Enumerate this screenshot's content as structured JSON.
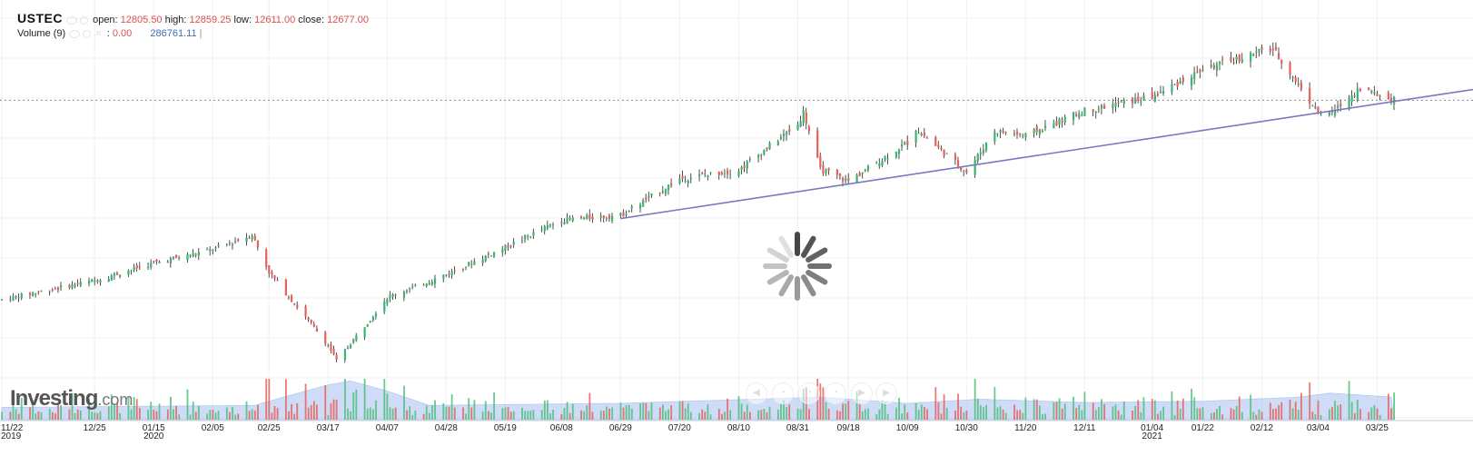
{
  "legend": {
    "symbol": "USTEC",
    "open_label": "open:",
    "open": "12805.50",
    "high_label": "high:",
    "high": "12859.25",
    "low_label": "low:",
    "low": "12611.00",
    "close_label": "close:",
    "close": "12677.00",
    "volume_label": "Volume (9)",
    "volume_sep": ":",
    "volume_value": "0.00",
    "volume_ma": "286761.11"
  },
  "watermark": {
    "brand": "Investing",
    "suffix": ".com"
  },
  "colors": {
    "up": "#3cb371",
    "down": "#e8605b",
    "wick": "#222222",
    "trendline": "#7b77c0",
    "volume_area": "#a9c1f3",
    "grid": "#f0f0f0",
    "dotted_line": "#888888"
  },
  "chart_data": {
    "type": "candlestick",
    "title": "",
    "instrument": "USTEC",
    "x_tick_labels": [
      "11/22",
      "12/25",
      "01/15",
      "02/05",
      "02/25",
      "03/17",
      "04/07",
      "04/28",
      "05/19",
      "06/08",
      "06/29",
      "07/20",
      "08/10",
      "08/31",
      "09/18",
      "10/09",
      "10/30",
      "11/20",
      "12/11",
      "01/04",
      "01/22",
      "02/12",
      "03/04",
      "03/25"
    ],
    "year_labels": [
      {
        "label": "2019",
        "tick": "11/22"
      },
      {
        "label": "2020",
        "tick": "01/15"
      },
      {
        "label": "2021",
        "tick": "01/04"
      }
    ],
    "close_path": [
      {
        "d": "2019-11-22",
        "v": 8300
      },
      {
        "d": "2019-12-25",
        "v": 8720
      },
      {
        "d": "2020-01-15",
        "v": 9100
      },
      {
        "d": "2020-02-05",
        "v": 9400
      },
      {
        "d": "2020-02-19",
        "v": 9720
      },
      {
        "d": "2020-02-25",
        "v": 8900
      },
      {
        "d": "2020-03-17",
        "v": 7300
      },
      {
        "d": "2020-03-20",
        "v": 6950
      },
      {
        "d": "2020-04-07",
        "v": 8350
      },
      {
        "d": "2020-04-28",
        "v": 8850
      },
      {
        "d": "2020-05-19",
        "v": 9450
      },
      {
        "d": "2020-06-08",
        "v": 10050
      },
      {
        "d": "2020-06-29",
        "v": 10150
      },
      {
        "d": "2020-07-20",
        "v": 10950
      },
      {
        "d": "2020-08-10",
        "v": 11150
      },
      {
        "d": "2020-08-31",
        "v": 12150
      },
      {
        "d": "2020-09-02",
        "v": 12420
      },
      {
        "d": "2020-09-08",
        "v": 11150
      },
      {
        "d": "2020-09-18",
        "v": 10900
      },
      {
        "d": "2020-10-09",
        "v": 11750
      },
      {
        "d": "2020-10-12",
        "v": 12050
      },
      {
        "d": "2020-10-30",
        "v": 11100
      },
      {
        "d": "2020-11-09",
        "v": 12000
      },
      {
        "d": "2020-11-20",
        "v": 11900
      },
      {
        "d": "2020-12-11",
        "v": 12450
      },
      {
        "d": "2021-01-04",
        "v": 12750
      },
      {
        "d": "2021-01-22",
        "v": 13350
      },
      {
        "d": "2021-02-12",
        "v": 13750
      },
      {
        "d": "2021-02-16",
        "v": 13800
      },
      {
        "d": "2021-03-04",
        "v": 12400
      },
      {
        "d": "2021-03-08",
        "v": 12350
      },
      {
        "d": "2021-03-19",
        "v": 12950
      },
      {
        "d": "2021-03-25",
        "v": 12800
      },
      {
        "d": "2021-03-31",
        "v": 12677
      }
    ],
    "horizontal_level": 12677,
    "trendline": [
      {
        "d": "2020-06-29",
        "v": 10080
      },
      {
        "d": "2021-03-31",
        "v": 12650
      }
    ],
    "ylim": [
      6900,
      14000
    ],
    "volume_ma_profile": [
      {
        "d": "2019-11-22",
        "v": 0.3
      },
      {
        "d": "2020-02-20",
        "v": 0.35
      },
      {
        "d": "2020-03-01",
        "v": 0.55
      },
      {
        "d": "2020-03-17",
        "v": 0.85
      },
      {
        "d": "2020-03-25",
        "v": 0.95
      },
      {
        "d": "2020-04-07",
        "v": 0.7
      },
      {
        "d": "2020-04-22",
        "v": 0.35
      },
      {
        "d": "2020-06-29",
        "v": 0.4
      },
      {
        "d": "2020-09-08",
        "v": 0.55
      },
      {
        "d": "2020-09-18",
        "v": 0.5
      },
      {
        "d": "2020-10-09",
        "v": 0.4
      },
      {
        "d": "2020-11-04",
        "v": 0.5
      },
      {
        "d": "2020-12-11",
        "v": 0.42
      },
      {
        "d": "2021-01-22",
        "v": 0.45
      },
      {
        "d": "2021-02-25",
        "v": 0.55
      },
      {
        "d": "2021-03-08",
        "v": 0.65
      },
      {
        "d": "2021-03-31",
        "v": 0.55
      }
    ]
  },
  "icons": {
    "spinner": "loading-spinner-icon",
    "nav": [
      "scroll-left-icon",
      "zoom-out-icon",
      "zoom-in-icon",
      "zoom-reset-icon",
      "scroll-right-icon"
    ]
  }
}
